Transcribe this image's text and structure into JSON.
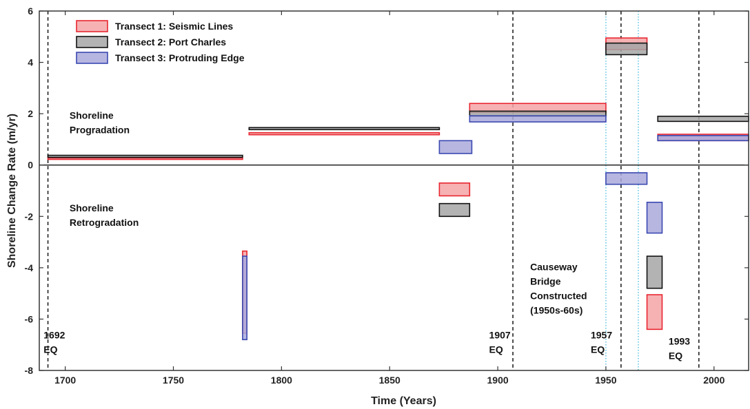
{
  "chart_data": {
    "type": "bar",
    "title": "",
    "xlabel": "Time (Years)",
    "ylabel": "Shoreline Change Rate (m/yr)",
    "xlim": [
      1688,
      2016
    ],
    "ylim": [
      -8,
      6
    ],
    "xticks": [
      1700,
      1750,
      1800,
      1850,
      1900,
      1950,
      2000
    ],
    "yticks": [
      -8,
      -6,
      -4,
      -2,
      0,
      2,
      4,
      6
    ],
    "grid": false,
    "legend_position": "top-left",
    "series": [
      {
        "name": "Transect 1: Seismic Lines",
        "fill": "#f4a3a6",
        "stroke": "#e8262f",
        "segments": [
          {
            "x0": 1692,
            "x1": 1782,
            "y0": 0.22,
            "y1": 0.28
          },
          {
            "x0": 1782,
            "x1": 1784,
            "y0": -6.55,
            "y1": -3.35
          },
          {
            "x0": 1785,
            "x1": 1873,
            "y0": 1.18,
            "y1": 1.26
          },
          {
            "x0": 1873,
            "x1": 1887,
            "y0": -1.2,
            "y1": -0.7
          },
          {
            "x0": 1887,
            "x1": 1950,
            "y0": 2.05,
            "y1": 2.4
          },
          {
            "x0": 1950,
            "x1": 1969,
            "y0": 4.5,
            "y1": 4.95
          },
          {
            "x0": 1969,
            "x1": 1976,
            "y0": -6.4,
            "y1": -5.05
          },
          {
            "x0": 1974,
            "x1": 2016,
            "y0": 0.95,
            "y1": 1.2
          }
        ]
      },
      {
        "name": "Transect 2: Port Charles",
        "fill": "#a6a6a6",
        "stroke": "#111111",
        "segments": [
          {
            "x0": 1692,
            "x1": 1782,
            "y0": 0.3,
            "y1": 0.38
          },
          {
            "x0": 1785,
            "x1": 1873,
            "y0": 1.38,
            "y1": 1.46
          },
          {
            "x0": 1873,
            "x1": 1887,
            "y0": -2.0,
            "y1": -1.5
          },
          {
            "x0": 1887,
            "x1": 1950,
            "y0": 1.9,
            "y1": 2.1
          },
          {
            "x0": 1950,
            "x1": 1969,
            "y0": 4.3,
            "y1": 4.75
          },
          {
            "x0": 1969,
            "x1": 1976,
            "y0": -4.8,
            "y1": -3.55
          },
          {
            "x0": 1974,
            "x1": 2016,
            "y0": 1.7,
            "y1": 1.9
          }
        ]
      },
      {
        "name": "Transect 3: Protruding Edge",
        "fill": "#a9a9dc",
        "stroke": "#3a48b0",
        "segments": [
          {
            "x0": 1782,
            "x1": 1784,
            "y0": -6.8,
            "y1": -3.55
          },
          {
            "x0": 1873,
            "x1": 1888,
            "y0": 0.45,
            "y1": 0.95
          },
          {
            "x0": 1887,
            "x1": 1950,
            "y0": 1.68,
            "y1": 1.92
          },
          {
            "x0": 1950,
            "x1": 1969,
            "y0": -0.75,
            "y1": -0.3
          },
          {
            "x0": 1969,
            "x1": 1976,
            "y0": -2.65,
            "y1": -1.45
          },
          {
            "x0": 1974,
            "x1": 2016,
            "y0": 0.95,
            "y1": 1.15
          }
        ]
      }
    ],
    "vlines": [
      {
        "x": 1692,
        "style": "dashed",
        "color": "#222222"
      },
      {
        "x": 1907,
        "style": "dashed",
        "color": "#222222"
      },
      {
        "x": 1957,
        "style": "dashed",
        "color": "#222222"
      },
      {
        "x": 1993,
        "style": "dashed",
        "color": "#222222"
      },
      {
        "x": 1950,
        "style": "dotted",
        "color": "#3fb8e0"
      },
      {
        "x": 1965,
        "style": "dotted",
        "color": "#3fb8e0"
      }
    ],
    "annotations": [
      {
        "lines": [
          "Shoreline",
          "Progradation"
        ],
        "x": 1702,
        "y": 1.8
      },
      {
        "lines": [
          "Shoreline",
          "Retrogradation"
        ],
        "x": 1702,
        "y": -1.8
      },
      {
        "lines": [
          "1692",
          "EQ"
        ],
        "x": 1690,
        "y": -6.75
      },
      {
        "lines": [
          "1907",
          "EQ"
        ],
        "x": 1896,
        "y": -6.75
      },
      {
        "lines": [
          "1957",
          "EQ"
        ],
        "x": 1943,
        "y": -6.75
      },
      {
        "lines": [
          "1993",
          "EQ"
        ],
        "x": 1979,
        "y": -7.0
      },
      {
        "lines": [
          "Causeway",
          "Bridge",
          "Constructed",
          "(1950s-60s)"
        ],
        "x": 1915,
        "y": -4.1
      }
    ]
  }
}
